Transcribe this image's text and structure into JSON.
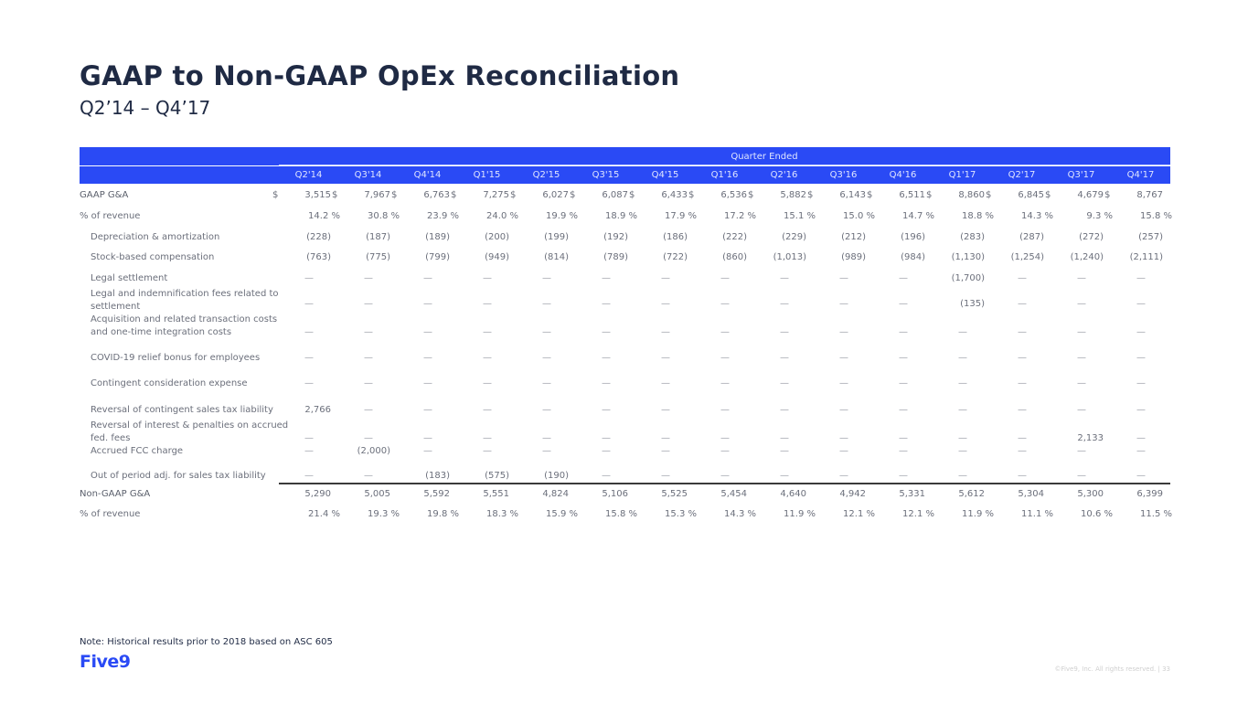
{
  "title": "GAAP to Non-GAAP OpEx Reconciliation",
  "subtitle": "Q2’14 – Q4’17",
  "table": {
    "group_header": "Quarter Ended",
    "columns": [
      "Q2'14",
      "Q3'14",
      "Q4'14",
      "Q1'15",
      "Q2'15",
      "Q3'15",
      "Q4'15",
      "Q1'16",
      "Q2'16",
      "Q3'16",
      "Q4'16",
      "Q1'17",
      "Q2'17",
      "Q3'17",
      "Q4'17"
    ],
    "rows": [
      {
        "label": "GAAP G&A",
        "type": "dollar",
        "values": [
          "3,515",
          "7,967",
          "6,763",
          "7,275",
          "6,027",
          "6,087",
          "6,433",
          "6,536",
          "5,882",
          "6,143",
          "6,511",
          "8,860",
          "6,845",
          "4,679",
          "8,767"
        ]
      },
      {
        "label": "% of revenue",
        "type": "pct",
        "values": [
          "14.2 %",
          "30.8 %",
          "23.9 %",
          "24.0 %",
          "19.9 %",
          "18.9 %",
          "17.9 %",
          "17.2 %",
          "15.1 %",
          "15.0 %",
          "14.7 %",
          "18.8 %",
          "14.3 %",
          "9.3 %",
          "15.8 %"
        ]
      },
      {
        "label": "Depreciation & amortization",
        "type": "adj",
        "values": [
          "(228)",
          "(187)",
          "(189)",
          "(200)",
          "(199)",
          "(192)",
          "(186)",
          "(222)",
          "(229)",
          "(212)",
          "(196)",
          "(283)",
          "(287)",
          "(272)",
          "(257)"
        ]
      },
      {
        "label": "Stock-based compensation",
        "type": "adj",
        "values": [
          "(763)",
          "(775)",
          "(799)",
          "(949)",
          "(814)",
          "(789)",
          "(722)",
          "(860)",
          "(1,013)",
          "(989)",
          "(984)",
          "(1,130)",
          "(1,254)",
          "(1,240)",
          "(2,111)"
        ]
      },
      {
        "label": "Legal settlement",
        "type": "adj",
        "values": [
          "—",
          "—",
          "—",
          "—",
          "—",
          "—",
          "—",
          "—",
          "—",
          "—",
          "—",
          "(1,700)",
          "—",
          "—",
          "—"
        ]
      },
      {
        "label": "Legal and indemnification fees related to settlement",
        "type": "adj",
        "values": [
          "—",
          "—",
          "—",
          "—",
          "—",
          "—",
          "—",
          "—",
          "—",
          "—",
          "—",
          "(135)",
          "—",
          "—",
          "—"
        ]
      },
      {
        "label": "Acquisition and related transaction costs and one-time integration costs",
        "type": "adj",
        "values": [
          "—",
          "—",
          "—",
          "—",
          "—",
          "—",
          "—",
          "—",
          "—",
          "—",
          "—",
          "—",
          "—",
          "—",
          "—"
        ]
      },
      {
        "label": "COVID-19 relief bonus for employees",
        "type": "adj",
        "values": [
          "—",
          "—",
          "—",
          "—",
          "—",
          "—",
          "—",
          "—",
          "—",
          "—",
          "—",
          "—",
          "—",
          "—",
          "—"
        ]
      },
      {
        "label": "Contingent consideration expense",
        "type": "adj",
        "values": [
          "—",
          "—",
          "—",
          "—",
          "—",
          "—",
          "—",
          "—",
          "—",
          "—",
          "—",
          "—",
          "—",
          "—",
          "—"
        ]
      },
      {
        "label": "Reversal of contingent sales tax liability",
        "type": "adj",
        "values": [
          "2,766",
          "—",
          "—",
          "—",
          "—",
          "—",
          "—",
          "—",
          "—",
          "—",
          "—",
          "—",
          "—",
          "—",
          "—"
        ]
      },
      {
        "label": "Reversal of interest & penalties on accrued fed. fees",
        "type": "adj",
        "values": [
          "—",
          "—",
          "—",
          "—",
          "—",
          "—",
          "—",
          "—",
          "—",
          "—",
          "—",
          "—",
          "—",
          "2,133",
          "—"
        ]
      },
      {
        "label": "Accrued FCC charge",
        "type": "adj",
        "values": [
          "—",
          "(2,000)",
          "—",
          "—",
          "—",
          "—",
          "—",
          "—",
          "—",
          "—",
          "—",
          "—",
          "—",
          "—",
          "—"
        ]
      },
      {
        "label": "Out of period adj. for sales tax liability",
        "type": "adj",
        "values": [
          "—",
          "—",
          "(183)",
          "(575)",
          "(190)",
          "—",
          "—",
          "—",
          "—",
          "—",
          "—",
          "—",
          "—",
          "—",
          "—"
        ]
      },
      {
        "label": "Non-GAAP G&A",
        "type": "total",
        "values": [
          "5,290",
          "5,005",
          "5,592",
          "5,551",
          "4,824",
          "5,106",
          "5,525",
          "5,454",
          "4,640",
          "4,942",
          "5,331",
          "5,612",
          "5,304",
          "5,300",
          "6,399"
        ]
      },
      {
        "label": "% of revenue",
        "type": "pct",
        "values": [
          "21.4 %",
          "19.3 %",
          "19.8 %",
          "18.3 %",
          "15.9 %",
          "15.8 %",
          "15.3 %",
          "14.3 %",
          "11.9 %",
          "12.1 %",
          "12.1 %",
          "11.9 %",
          "11.1 %",
          "10.6 %",
          "11.5 %"
        ]
      }
    ]
  },
  "note": "Note: Historical results prior to 2018 based on ASC 605",
  "logo": "Five9",
  "footer": "©Five9, Inc. All rights reserved. | 33",
  "colors": {
    "accent": "#2a4af5",
    "title": "#1f2a44"
  }
}
